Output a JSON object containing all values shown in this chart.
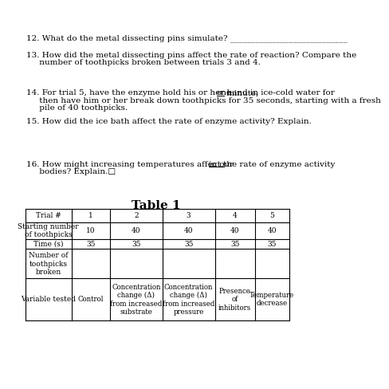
{
  "background_color": "#ffffff",
  "q12": "12. What do the metal dissecting pins simulate? ____________________________",
  "q13_line1": "13. How did the metal dissecting pins affect the rate of reaction? Compare the",
  "q13_line2": "     number of toothpicks broken between trials 3 and 4.",
  "q14_pre": "14. For trial 5, have the enzyme hold his or her hand in ice-cold water for ",
  "q14_underline": "one",
  "q14_after": " minute,",
  "q14_line2": "     then have him or her break down toothpicks for 35 seconds, starting with a fresh",
  "q14_line3": "     pile of 40 toothpicks.",
  "q15": "15. How did the ice bath affect the rate of enzyme activity? Explain.",
  "q16_pre": "16. How might increasing temperatures affect the rate of enzyme activity ",
  "q16_underline": "in our",
  "q16_line2": "     bodies? Explain.□",
  "table_title": "Table 1",
  "col_headers": [
    "Trial #",
    "1",
    "2",
    "3",
    "4",
    "5"
  ],
  "row1_label": "Starting number\nof toothpicks",
  "row1_vals": [
    "10",
    "40",
    "40",
    "40",
    "40"
  ],
  "row2_label": "Time (s)",
  "row2_vals": [
    "35",
    "35",
    "35",
    "35",
    "35"
  ],
  "row3_label": "Number of\ntoothpicks\nbroken",
  "row3_vals": [
    "",
    "",
    "",
    "",
    ""
  ],
  "row4_label": "Variable tested",
  "row4_vals": [
    "Control",
    "Concentration\nchange (Δ)\nfrom increased\nsubstrate",
    "Concentration\nchange (Δ)\nfrom increased\npressure",
    "Presence\nof\ninhibitors",
    "Temperature\ndecrease"
  ]
}
